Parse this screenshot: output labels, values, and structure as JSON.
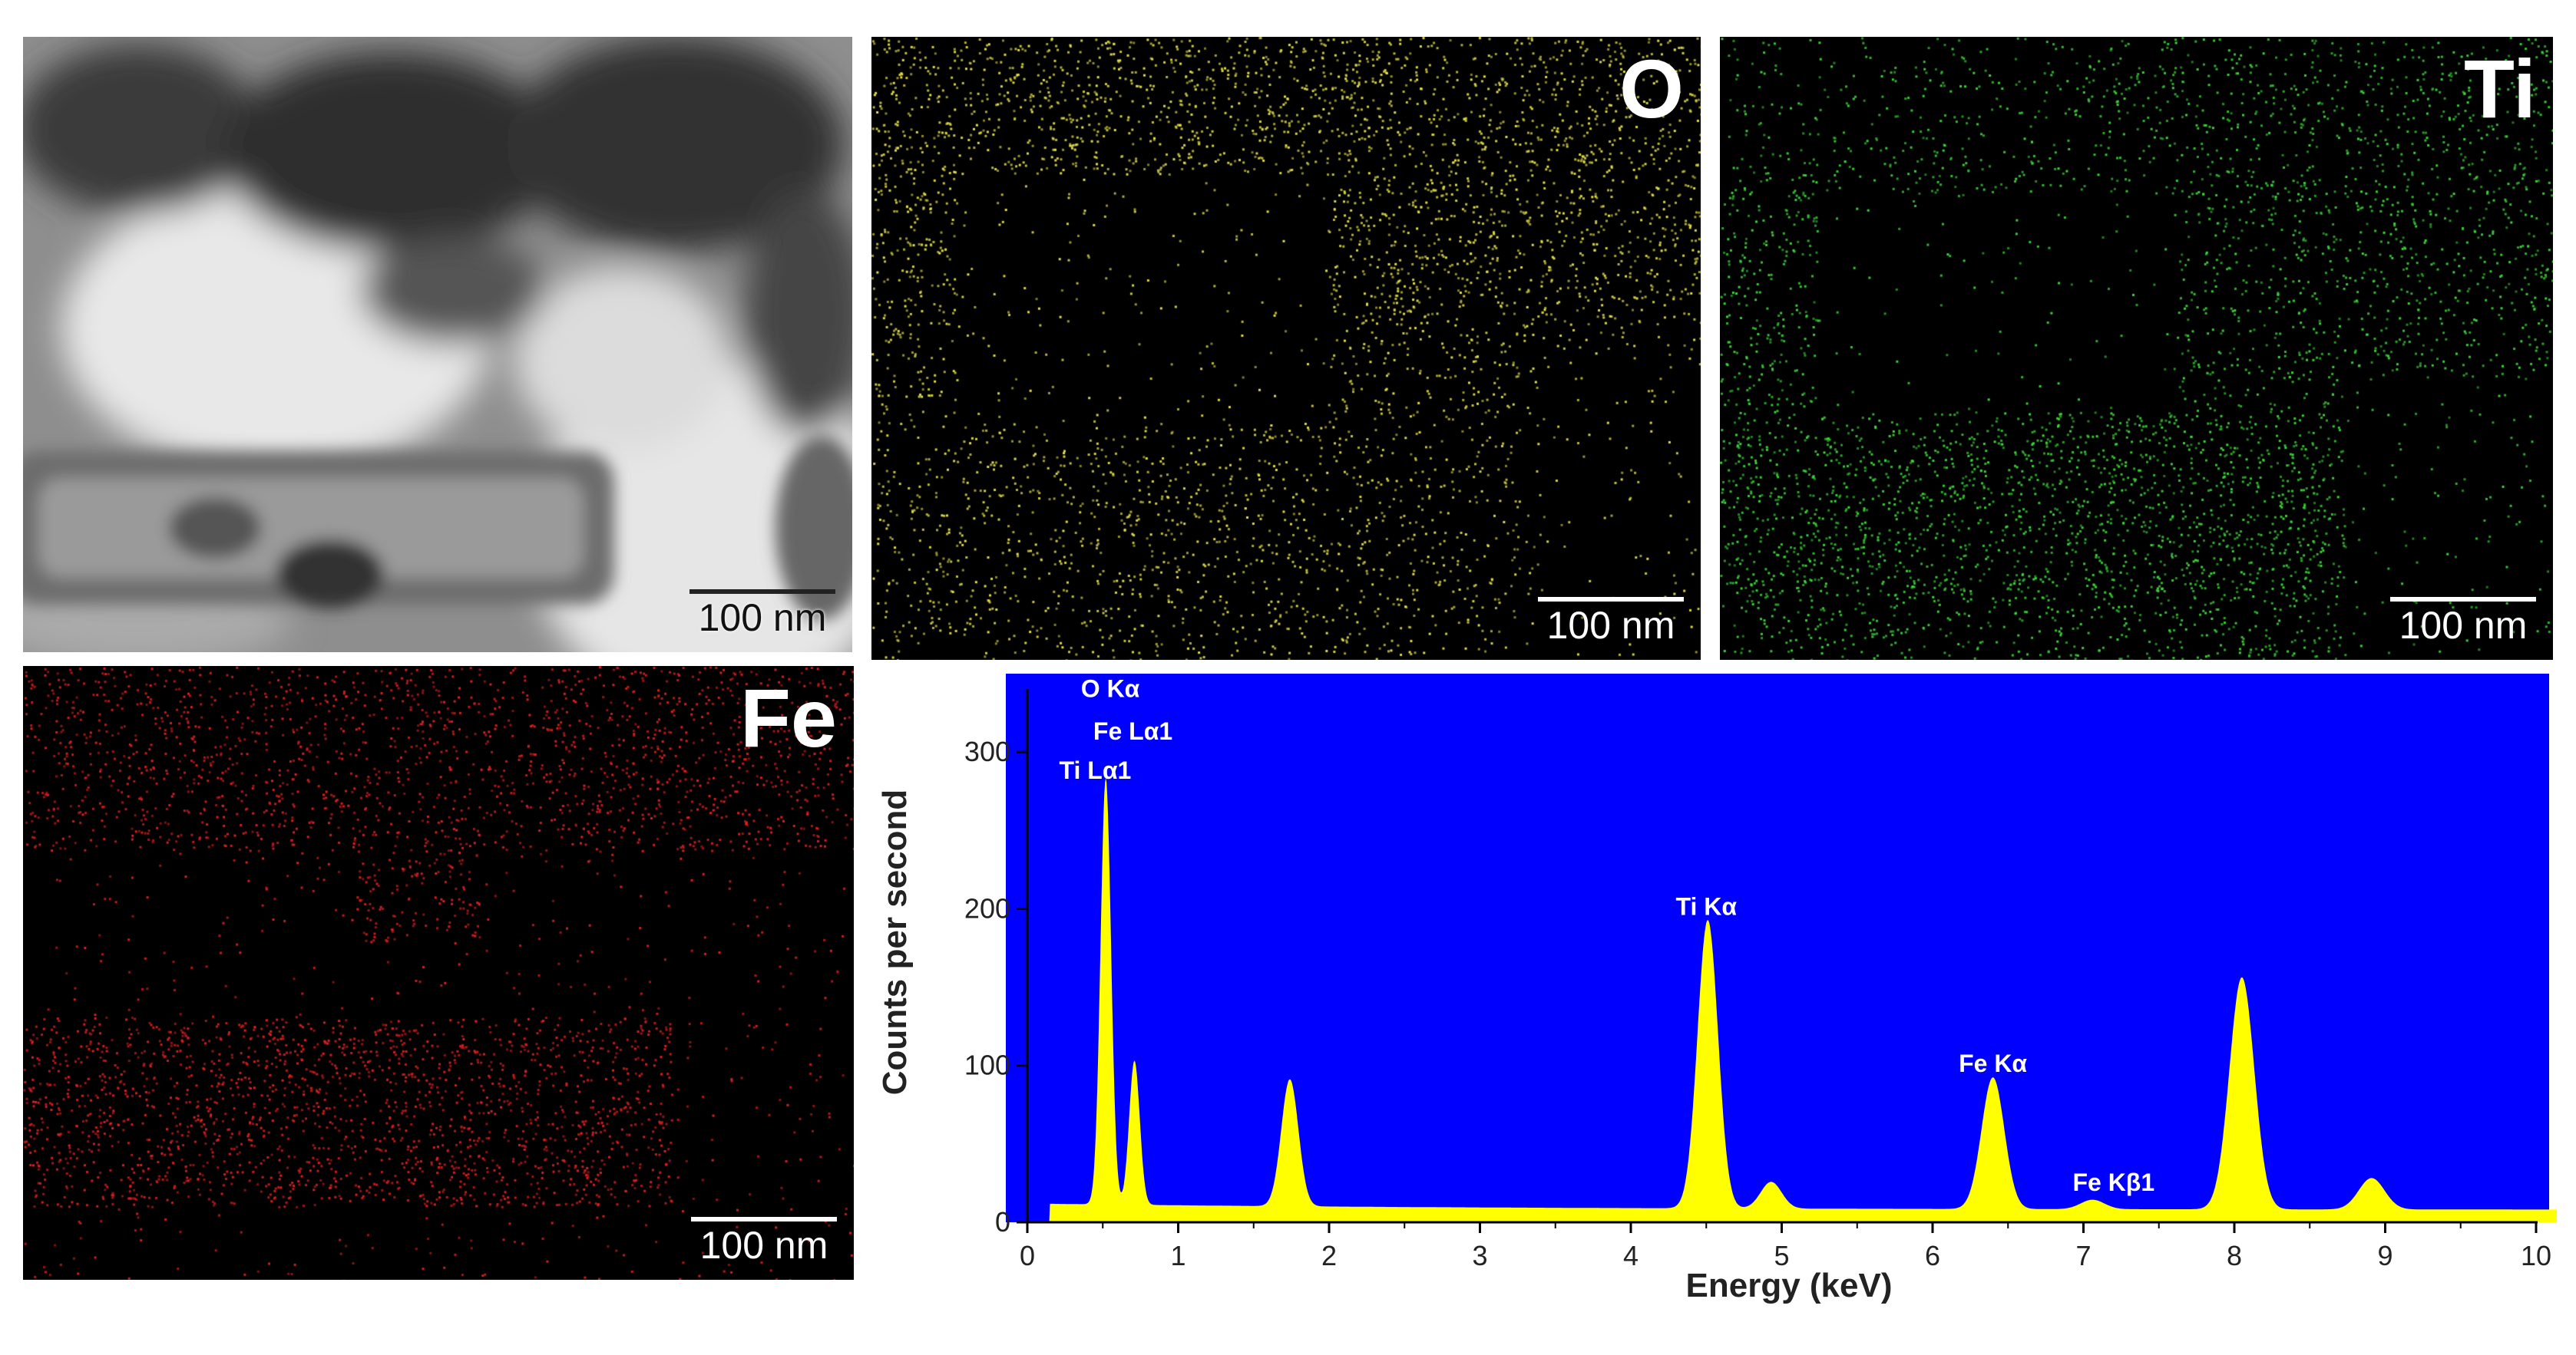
{
  "panels": {
    "tem": {
      "scalebar": "100 nm"
    },
    "o": {
      "element": "O",
      "scalebar": "100 nm",
      "color": "#e6e04a"
    },
    "ti": {
      "element": "Ti",
      "scalebar": "100 nm",
      "color": "#3ed63a"
    },
    "fe": {
      "element": "Fe",
      "scalebar": "100 nm",
      "color": "#e02020"
    }
  },
  "chart_data": {
    "type": "area",
    "xlabel": "Energy (keV)",
    "ylabel": "Counts per second",
    "xlim": [
      0,
      10.3
    ],
    "ylim": [
      0,
      350
    ],
    "xticks": [
      0,
      1,
      2,
      3,
      4,
      5,
      6,
      7,
      8,
      9,
      10
    ],
    "yticks": [
      0,
      100,
      200,
      300
    ],
    "background": "#0000ff",
    "fill": "#ffff00",
    "peaks": [
      {
        "x": 0.52,
        "y": 278
      },
      {
        "x": 0.71,
        "y": 98
      },
      {
        "x": 1.74,
        "y": 87
      },
      {
        "x": 4.51,
        "y": 190
      },
      {
        "x": 4.93,
        "y": 23
      },
      {
        "x": 6.4,
        "y": 90
      },
      {
        "x": 7.06,
        "y": 12
      },
      {
        "x": 8.05,
        "y": 154
      },
      {
        "x": 8.91,
        "y": 26
      }
    ],
    "annotations": [
      {
        "text": "O Kα",
        "x": 0.55,
        "y": 335
      },
      {
        "text": "Fe Lα1",
        "x": 0.7,
        "y": 308
      },
      {
        "text": "Ti Lα1",
        "x": 0.45,
        "y": 283
      },
      {
        "text": "Ti Kα",
        "x": 4.5,
        "y": 196
      },
      {
        "text": "Fe Kα",
        "x": 6.4,
        "y": 96
      },
      {
        "text": "Fe Kβ1",
        "x": 7.2,
        "y": 20
      }
    ]
  }
}
